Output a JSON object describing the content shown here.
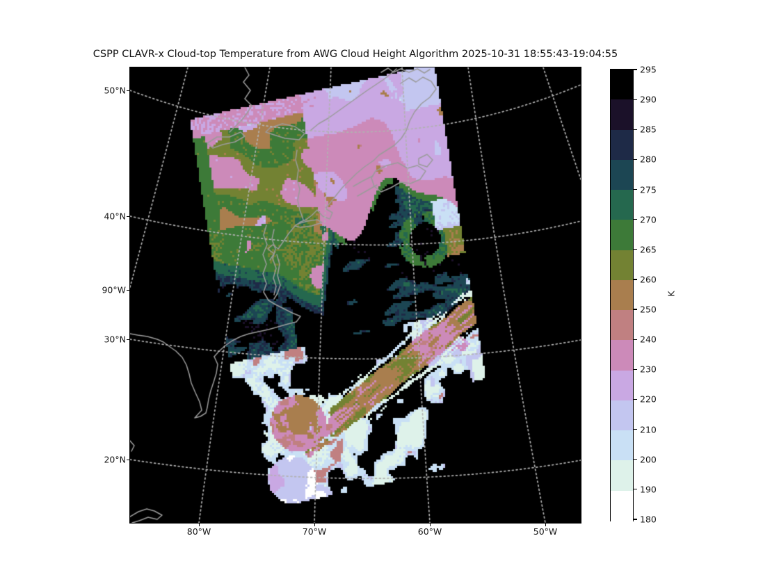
{
  "title": "CSPP CLAVR-x Cloud-top Temperature from AWG Cloud Height Algorithm 2025-10-31 18:55:43-19:04:55",
  "axes": {
    "lat_ticks": [
      {
        "label": "50°N"
      },
      {
        "label": "40°N"
      },
      {
        "label": "90°W"
      },
      {
        "label": "30°N"
      },
      {
        "label": "20°N"
      }
    ],
    "lon_ticks": [
      {
        "label": "80°W"
      },
      {
        "label": "70°W"
      },
      {
        "label": "60°W"
      },
      {
        "label": "50°W"
      }
    ]
  },
  "colorbar": {
    "unit": "K",
    "tick_labels": [
      "295",
      "290",
      "285",
      "280",
      "275",
      "270",
      "265",
      "260",
      "250",
      "240",
      "230",
      "220",
      "210",
      "200",
      "190",
      "180"
    ],
    "segment_colors_top_to_bottom": [
      "#000000",
      "#1b1129",
      "#1e2a47",
      "#1c4653",
      "#25684e",
      "#3d7a38",
      "#738233",
      "#a97e4e",
      "#c08081",
      "#cc8ab9",
      "#c9a8e3",
      "#c3c6f0",
      "#c9e0f5",
      "#def2ea",
      "#ffffff"
    ]
  },
  "map": {
    "background_color": "#000000",
    "coastline_color": "#9b9b9b",
    "gridline_color": "#b2b2b2"
  }
}
